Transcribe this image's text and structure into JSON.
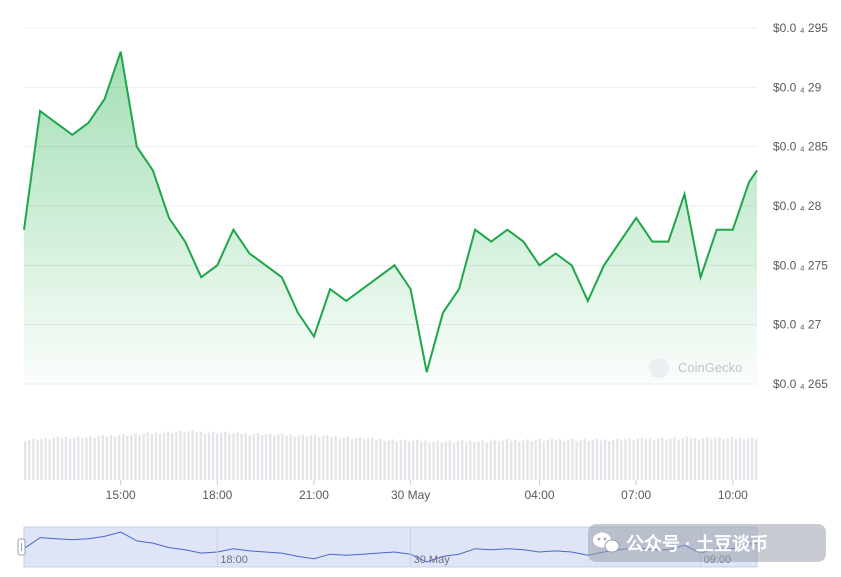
{
  "chart_data": {
    "type": "area",
    "y_axis": {
      "position": "right",
      "ylim": [
        2.64e-05,
        2.965e-05
      ],
      "ticks": [
        {
          "value": 2.65e-05,
          "label": "$0.0 ₄ 265"
        },
        {
          "value": 2.7e-05,
          "label": "$0.0 ₄ 27"
        },
        {
          "value": 2.75e-05,
          "label": "$0.0 ₄ 275"
        },
        {
          "value": 2.8e-05,
          "label": "$0.0 ₄ 28"
        },
        {
          "value": 2.85e-05,
          "label": "$0.0 ₄ 285"
        },
        {
          "value": 2.9e-05,
          "label": "$0.0 ₄ 29"
        },
        {
          "value": 2.95e-05,
          "label": "$0.0 ₄ 295"
        }
      ]
    },
    "x_axis": {
      "xlim": [
        "29 May 12:00",
        "30 May 10:45"
      ],
      "ticks": [
        "15:00",
        "18:00",
        "21:00",
        "30 May",
        "04:00",
        "07:00",
        "10:00"
      ]
    },
    "grid": true,
    "series": [
      {
        "color": "#1ea64a",
        "x": [
          "12:00",
          "12:30",
          "13:00",
          "13:30",
          "14:00",
          "14:30",
          "15:00",
          "15:30",
          "16:00",
          "16:30",
          "17:00",
          "17:30",
          "18:00",
          "18:30",
          "19:00",
          "19:30",
          "20:00",
          "20:30",
          "21:00",
          "21:30",
          "22:00",
          "22:30",
          "23:00",
          "23:30",
          "00:00",
          "00:30",
          "01:00",
          "01:30",
          "02:00",
          "02:30",
          "03:00",
          "03:30",
          "04:00",
          "04:30",
          "05:00",
          "05:30",
          "06:00",
          "06:30",
          "07:00",
          "07:30",
          "08:00",
          "08:30",
          "09:00",
          "09:30",
          "10:00",
          "10:30",
          "10:45"
        ],
        "values": [
          2.78e-05,
          2.88e-05,
          2.87e-05,
          2.86e-05,
          2.87e-05,
          2.89e-05,
          2.93e-05,
          2.85e-05,
          2.83e-05,
          2.79e-05,
          2.77e-05,
          2.74e-05,
          2.75e-05,
          2.78e-05,
          2.76e-05,
          2.75e-05,
          2.74e-05,
          2.71e-05,
          2.69e-05,
          2.73e-05,
          2.72e-05,
          2.73e-05,
          2.74e-05,
          2.75e-05,
          2.73e-05,
          2.66e-05,
          2.71e-05,
          2.73e-05,
          2.78e-05,
          2.77e-05,
          2.78e-05,
          2.77e-05,
          2.75e-05,
          2.76e-05,
          2.75e-05,
          2.72e-05,
          2.75e-05,
          2.77e-05,
          2.79e-05,
          2.77e-05,
          2.77e-05,
          2.81e-05,
          2.74e-05,
          2.78e-05,
          2.78e-05,
          2.82e-05,
          2.83e-05
        ]
      }
    ],
    "volume": {
      "color": "#e3e5e8",
      "values": [
        0.8,
        0.82,
        0.84,
        0.86,
        0.86,
        0.88,
        0.9,
        0.92,
        0.94,
        0.96,
        0.97,
        0.96,
        0.95,
        0.94,
        0.93,
        0.92,
        0.91,
        0.9,
        0.89,
        0.88,
        0.86,
        0.84,
        0.82,
        0.8,
        0.79,
        0.78,
        0.77,
        0.77,
        0.78,
        0.78,
        0.79,
        0.8,
        0.8,
        0.8,
        0.81,
        0.8,
        0.8,
        0.81,
        0.82,
        0.83,
        0.83,
        0.83,
        0.84,
        0.84,
        0.84,
        0.84,
        0.84
      ]
    },
    "navigator": {
      "ticks": [
        "18:00",
        "30 May",
        "09:00"
      ],
      "line_color": "#4a67c9",
      "fill_color": "#dfe4f6"
    }
  },
  "watermark": {
    "text": "CoinGecko"
  },
  "wechat_overlay": {
    "text": "公众号 · 土豆谈币"
  }
}
